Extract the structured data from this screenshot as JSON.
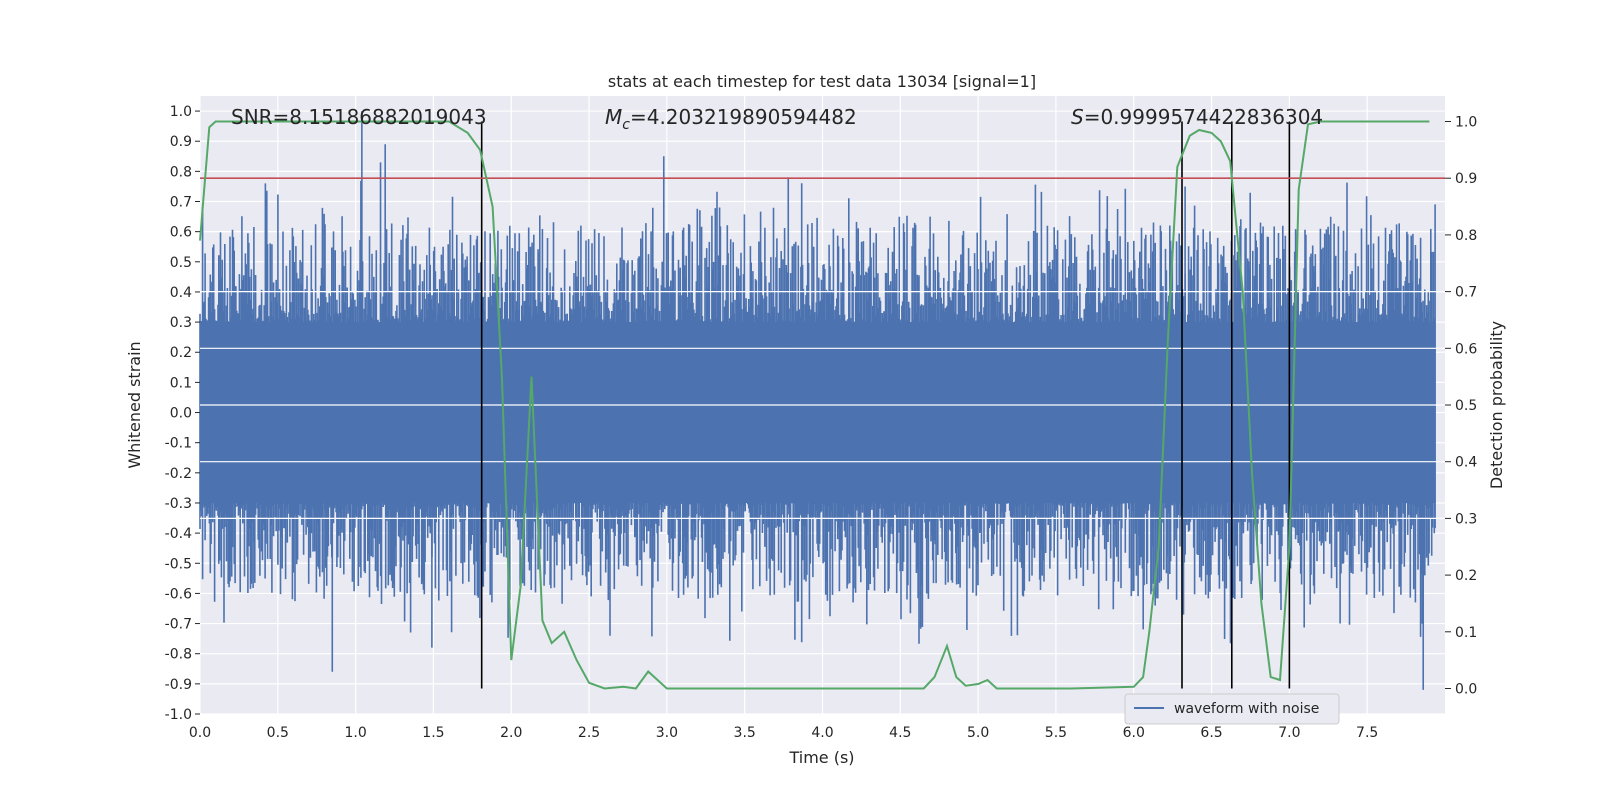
{
  "chart_data": {
    "type": "line",
    "title": "stats at each timestep for test data 13034 [signal=1]",
    "xlabel": "Time (s)",
    "ylabel": "Whitened strain",
    "y2label": "Detection probability",
    "xlim": [
      0.0,
      8.0
    ],
    "ylim": [
      -1.0,
      1.05
    ],
    "y2lim": [
      -0.045,
      1.045
    ],
    "xticks": [
      0.0,
      0.5,
      1.0,
      1.5,
      2.0,
      2.5,
      3.0,
      3.5,
      4.0,
      4.5,
      5.0,
      5.5,
      6.0,
      6.5,
      7.0,
      7.5
    ],
    "xtick_labels": [
      "0.0",
      "0.5",
      "1.0",
      "1.5",
      "2.0",
      "2.5",
      "3.0",
      "3.5",
      "4.0",
      "4.5",
      "5.0",
      "5.5",
      "6.0",
      "6.5",
      "7.0",
      "7.5"
    ],
    "yticks": [
      1.0,
      0.9,
      0.8,
      0.7,
      0.6,
      0.5,
      0.4,
      0.3,
      0.2,
      0.1,
      0.0,
      -0.1,
      -0.2,
      -0.3,
      -0.4,
      -0.5,
      -0.6,
      -0.7,
      -0.8,
      -0.9,
      -1.0
    ],
    "ytick_labels": [
      "1.0",
      "0.9",
      "0.8",
      "0.7",
      "0.6",
      "0.5",
      "0.4",
      "0.3",
      "0.2",
      "0.1",
      "0.0",
      "-0.1",
      "-0.2",
      "-0.3",
      "-0.4",
      "-0.5",
      "-0.6",
      "-0.7",
      "-0.8",
      "-0.9",
      "-1.0"
    ],
    "y2ticks": [
      1.0,
      0.9,
      0.8,
      0.7,
      0.6,
      0.5,
      0.4,
      0.3,
      0.2,
      0.1,
      0.0
    ],
    "y2tick_labels": [
      "1.0",
      "0.9",
      "0.8",
      "0.7",
      "0.6",
      "0.5",
      "0.4",
      "0.3",
      "0.2",
      "0.1",
      "0.0"
    ],
    "grid": true,
    "legend_placement": "lower-right",
    "annotations": {
      "snr": "SNR=8.15186882019043",
      "mc_symbol": "M",
      "mc_sub": "c",
      "mc_value": "=4.203219890594482",
      "s_symbol": "S",
      "s_value": "=0.9999574422836304"
    },
    "threshold": {
      "axis": "right",
      "value": 0.9,
      "color": "#c44e52"
    },
    "vertical_lines": [
      1.81,
      6.31,
      6.63,
      7.0
    ],
    "series": [
      {
        "name": "waveform with noise",
        "axis": "left",
        "color": "#4c72b0",
        "style": "dense-noise",
        "envelope_core": 0.3,
        "spikes": [
          {
            "t": 1.04,
            "v": 1.0
          },
          {
            "t": 1.16,
            "v": 0.83
          },
          {
            "t": 1.19,
            "v": 0.89
          },
          {
            "t": 0.85,
            "v": -0.86
          },
          {
            "t": 1.49,
            "v": -0.78
          },
          {
            "t": 2.98,
            "v": 0.85
          },
          {
            "t": 7.86,
            "v": -0.92
          },
          {
            "t": 0.42,
            "v": 0.76
          },
          {
            "t": 3.78,
            "v": 0.78
          },
          {
            "t": 6.33,
            "v": 0.75
          }
        ]
      },
      {
        "axis": "right",
        "color": "#55a868",
        "style": "line",
        "x": [
          0.0,
          0.06,
          0.1,
          0.2,
          0.4,
          0.6,
          0.8,
          1.0,
          1.2,
          1.4,
          1.6,
          1.72,
          1.8,
          1.88,
          1.94,
          2.0,
          2.06,
          2.13,
          2.2,
          2.26,
          2.34,
          2.42,
          2.5,
          2.6,
          2.72,
          2.8,
          2.88,
          3.0,
          3.2,
          3.6,
          4.0,
          4.4,
          4.65,
          4.72,
          4.8,
          4.86,
          4.92,
          5.0,
          5.06,
          5.12,
          5.2,
          5.6,
          6.0,
          6.06,
          6.1,
          6.16,
          6.22,
          6.28,
          6.36,
          6.42,
          6.5,
          6.56,
          6.62,
          6.7,
          6.76,
          6.82,
          6.88,
          6.94,
          7.0,
          7.06,
          7.12,
          7.2,
          7.6,
          7.9
        ],
        "y": [
          0.79,
          0.99,
          1.0,
          1.0,
          1.0,
          1.0,
          1.0,
          1.0,
          1.0,
          1.0,
          1.0,
          0.98,
          0.95,
          0.85,
          0.55,
          0.05,
          0.18,
          0.55,
          0.12,
          0.08,
          0.1,
          0.05,
          0.01,
          0.0,
          0.003,
          0.0,
          0.03,
          0.0,
          0.0,
          0.0,
          0.0,
          0.0,
          0.0,
          0.02,
          0.075,
          0.02,
          0.005,
          0.008,
          0.015,
          0.0,
          0.0,
          0.0,
          0.003,
          0.02,
          0.1,
          0.25,
          0.62,
          0.92,
          0.975,
          0.985,
          0.98,
          0.965,
          0.93,
          0.7,
          0.38,
          0.15,
          0.02,
          0.015,
          0.25,
          0.88,
          0.995,
          1.0,
          1.0,
          1.0
        ]
      }
    ]
  }
}
